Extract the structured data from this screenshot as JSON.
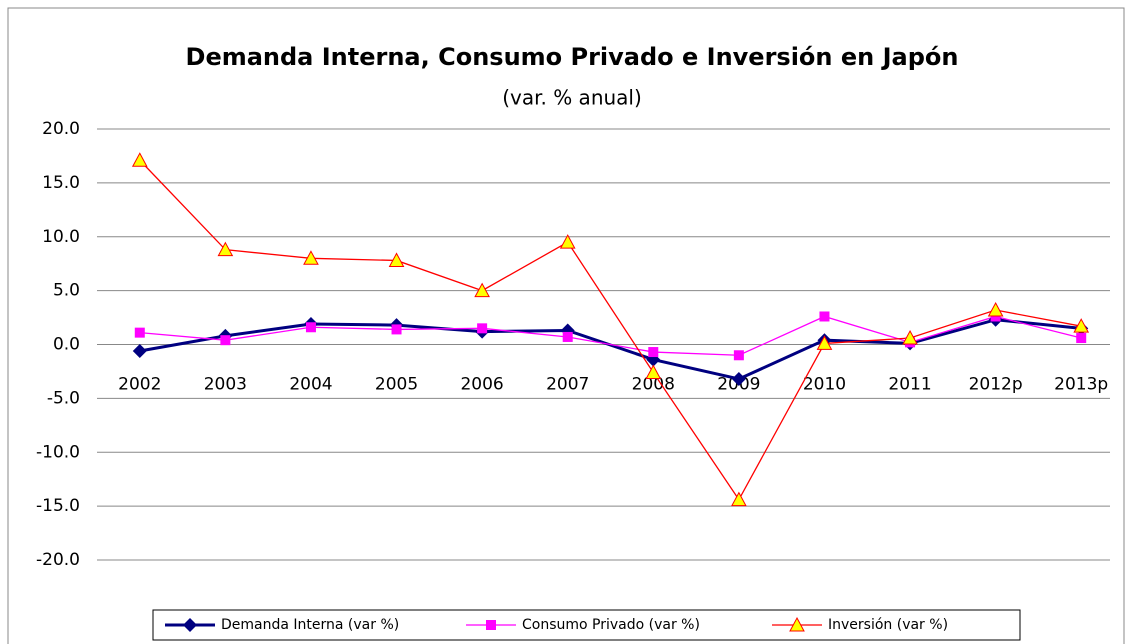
{
  "chart_data": {
    "type": "line",
    "title": "Demanda Interna, Consumo Privado e Inversión en Japón",
    "subtitle": "(var. % anual)",
    "categories": [
      "2002",
      "2003",
      "2004",
      "2005",
      "2006",
      "2007",
      "2008",
      "2009",
      "2010",
      "2011",
      "2012p",
      "2013p"
    ],
    "series": [
      {
        "name": "Demanda Interna (var %)",
        "color": "#000080",
        "marker": "diamond",
        "values": [
          -0.6,
          0.8,
          1.9,
          1.8,
          1.2,
          1.3,
          -1.4,
          -3.2,
          0.4,
          0.1,
          2.3,
          1.5
        ]
      },
      {
        "name": "Consumo Privado (var %)",
        "color": "#ff00ff",
        "marker": "square",
        "values": [
          1.1,
          0.4,
          1.6,
          1.4,
          1.5,
          0.7,
          -0.7,
          -1.0,
          2.6,
          0.2,
          2.6,
          0.6
        ]
      },
      {
        "name": "Inversión (var %)",
        "color": "#ff0000",
        "marker": "triangle",
        "values": [
          17.1,
          8.8,
          8.0,
          7.8,
          5.0,
          9.5,
          -2.6,
          -14.4,
          0.1,
          0.6,
          3.2,
          1.7
        ]
      }
    ],
    "ylim": [
      -20,
      20
    ],
    "yticks": [
      {
        "value": -20,
        "label": "-20.0"
      },
      {
        "value": -15,
        "label": "-15.0"
      },
      {
        "value": -10,
        "label": "-10.0"
      },
      {
        "value": -5,
        "label": "-5.0"
      },
      {
        "value": 0,
        "label": "0.0"
      },
      {
        "value": 5,
        "label": "5.0"
      },
      {
        "value": 10,
        "label": "10.0"
      },
      {
        "value": 15,
        "label": "15.0"
      },
      {
        "value": 20,
        "label": "20.0"
      }
    ],
    "grid": true,
    "legend": "bottom"
  }
}
